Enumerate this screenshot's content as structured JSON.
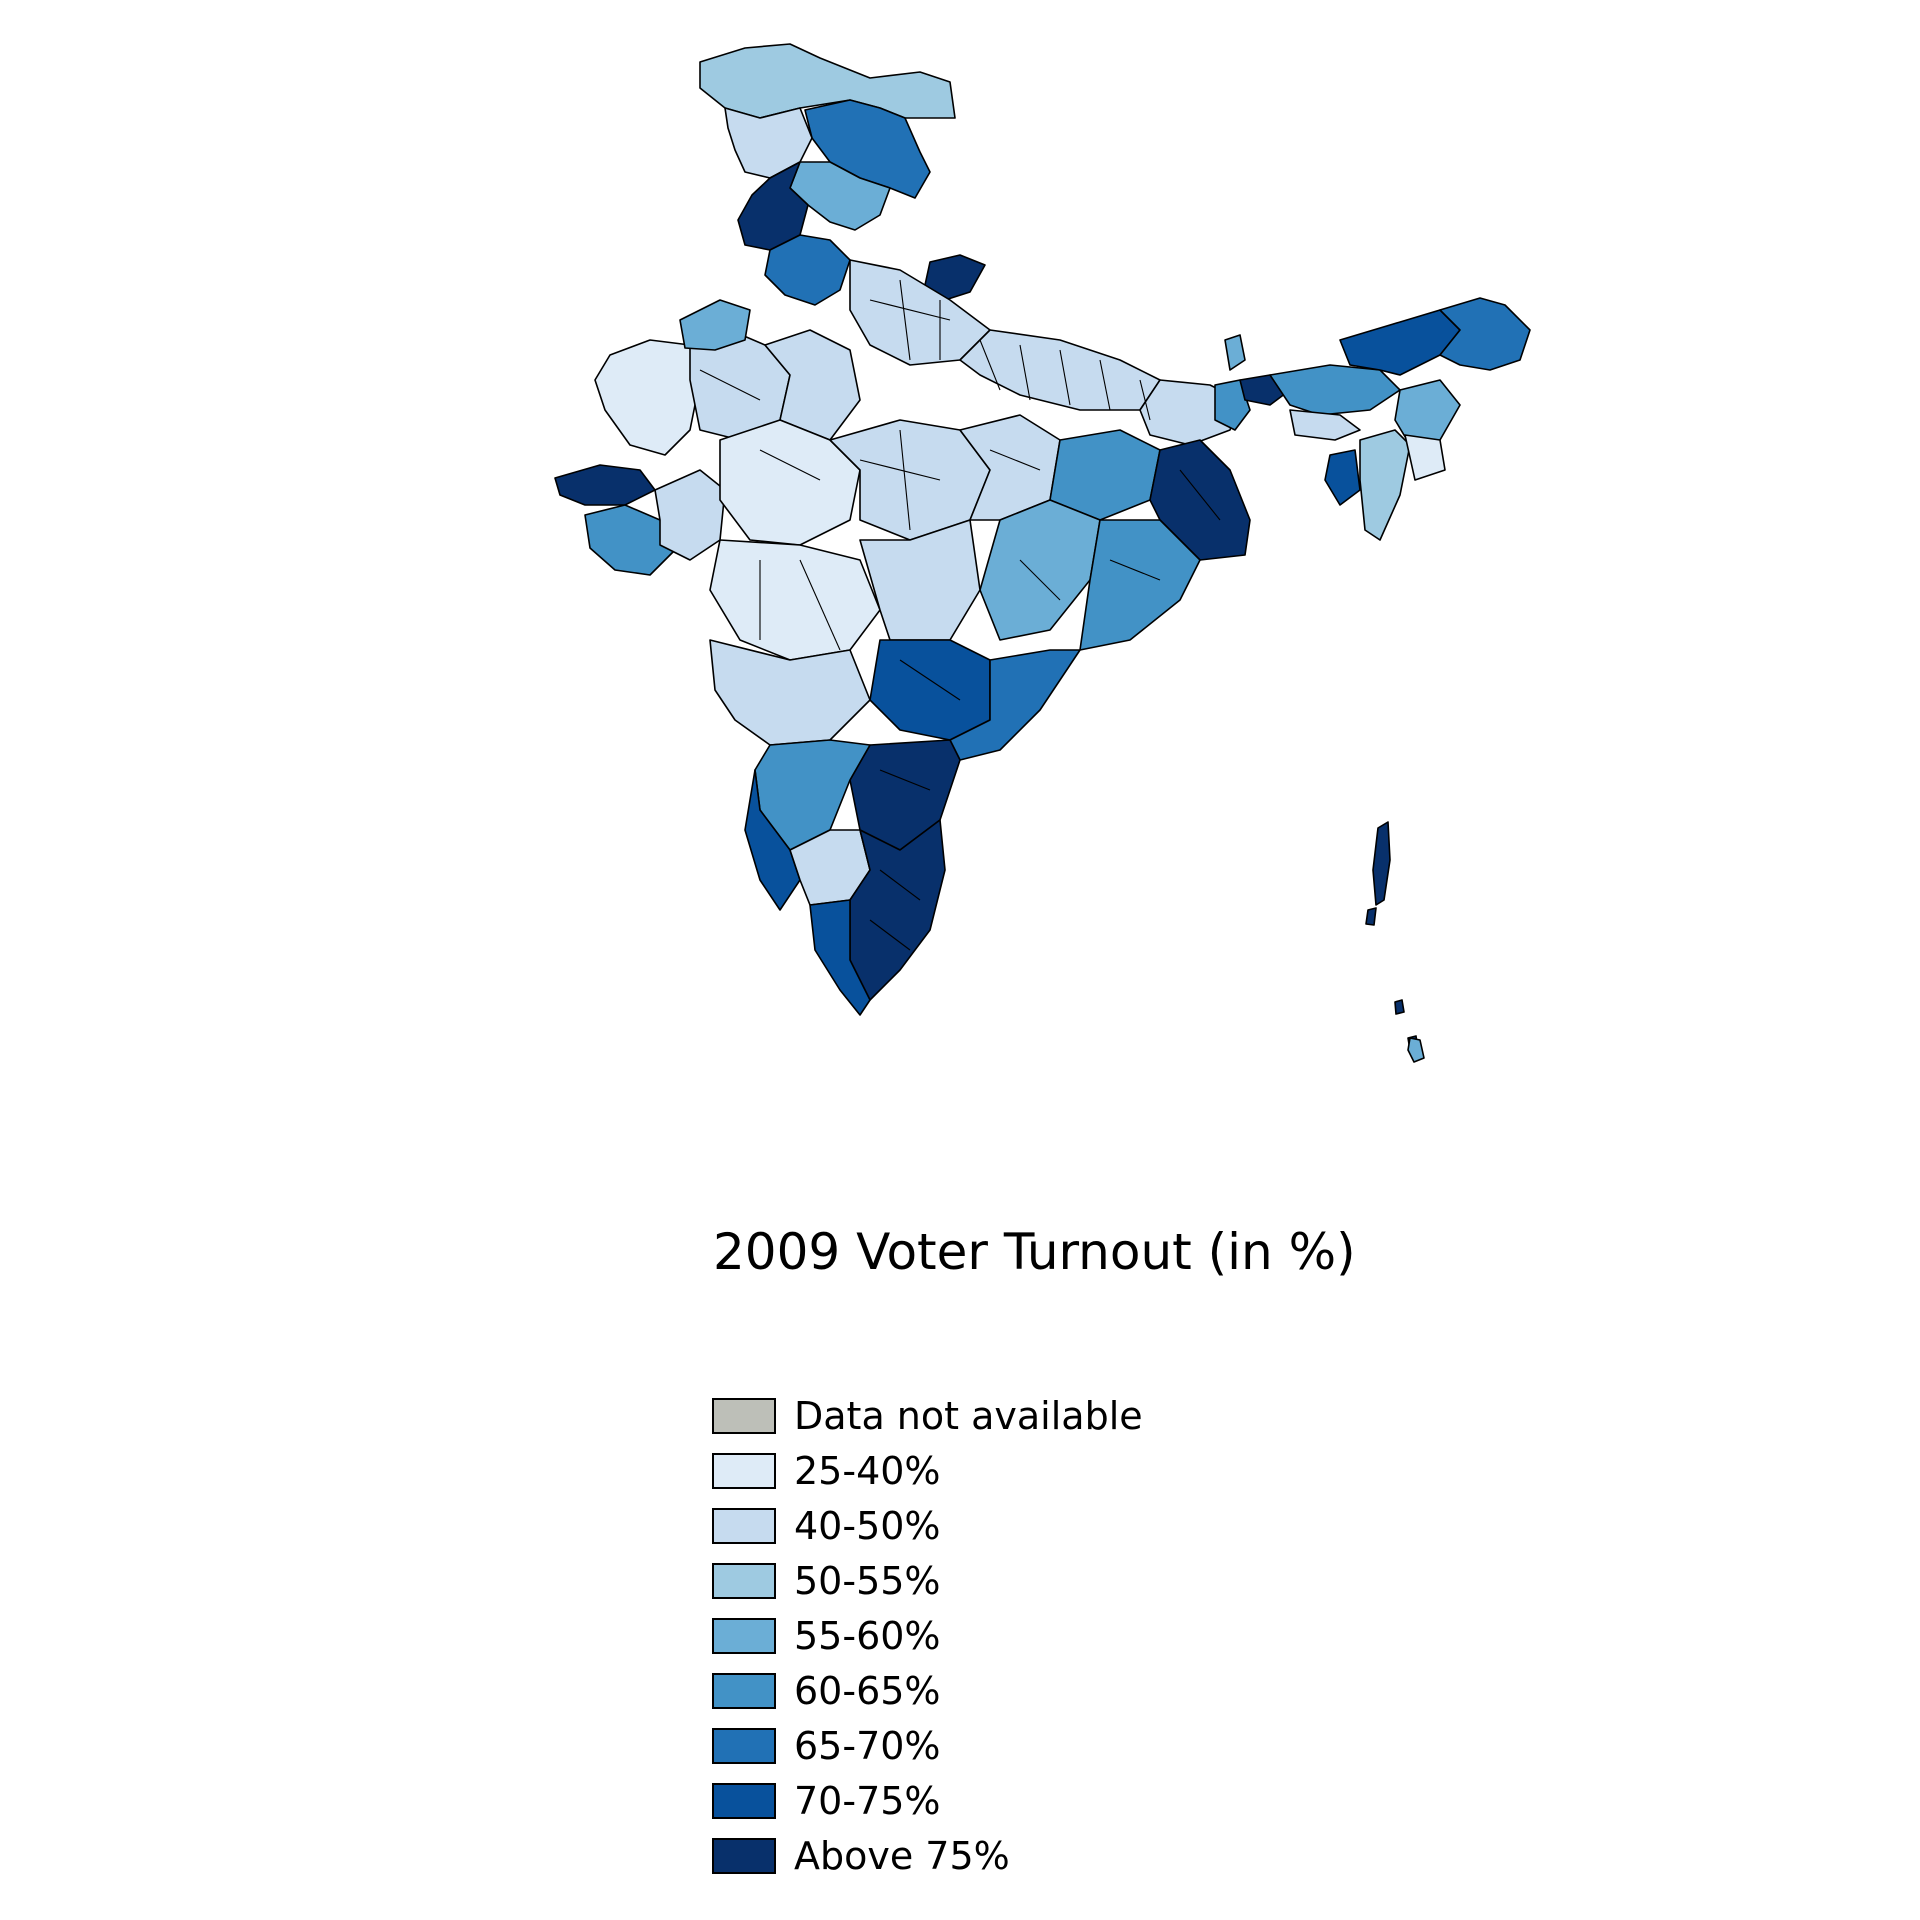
{
  "map": {
    "region": "India",
    "classes": [
      {
        "label": "Data not available",
        "color": "#bdbfb8"
      },
      {
        "label": "25-40%",
        "color": "#deebf7"
      },
      {
        "label": "40-50%",
        "color": "#c6dbef"
      },
      {
        "label": "50-55%",
        "color": "#9ecae1"
      },
      {
        "label": "55-60%",
        "color": "#6baed6"
      },
      {
        "label": "60-65%",
        "color": "#4292c6"
      },
      {
        "label": "65-70%",
        "color": "#2171b5"
      },
      {
        "label": "70-75%",
        "color": "#08519c"
      },
      {
        "label": "Above 75%",
        "color": "#08306b"
      }
    ]
  },
  "title": "2009 Voter Turnout (in %)"
}
